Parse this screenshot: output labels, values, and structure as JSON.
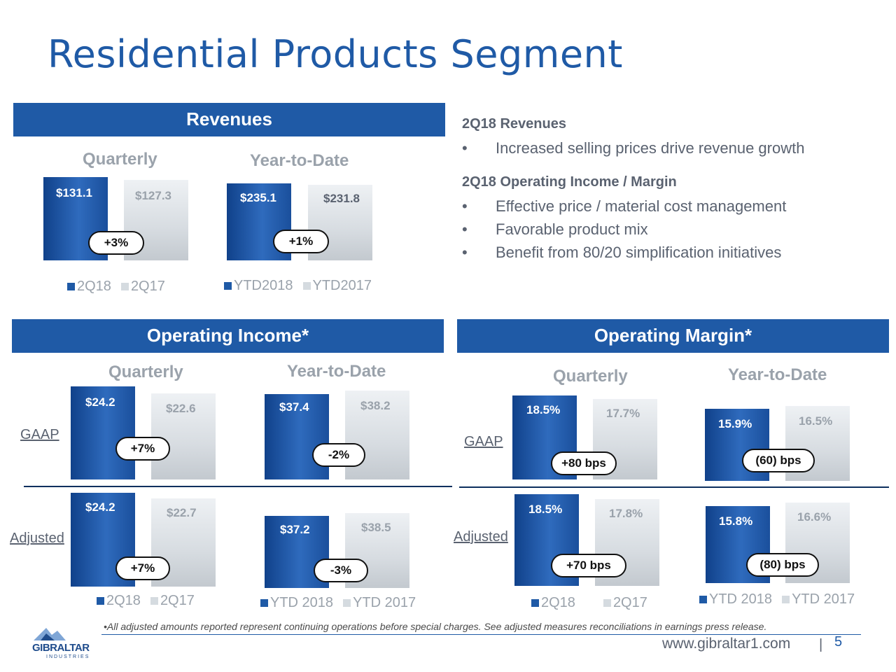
{
  "title": "Residential Products Segment",
  "revenues": {
    "banner": "Revenues",
    "quarterly_label": "Quarterly",
    "ytd_label": "Year-to-Date",
    "quarterly": {
      "current": "$131.1",
      "prior": "$127.3",
      "change": "+3%"
    },
    "ytd": {
      "current": "$235.1",
      "prior": "$231.8",
      "change": "+1%"
    },
    "legend_q": [
      "2Q18",
      "2Q17"
    ],
    "legend_ytd": [
      "YTD2018",
      "YTD2017"
    ]
  },
  "commentary": {
    "rev_head": "2Q18 Revenues",
    "rev_bullets": [
      "Increased selling prices drive revenue growth"
    ],
    "oi_head": "2Q18 Operating Income / Margin",
    "oi_bullets": [
      "Effective price / material cost management",
      "Favorable product mix",
      "Benefit from 80/20 simplification initiatives"
    ],
    "bullet_char": "•"
  },
  "operating_income": {
    "banner": "Operating Income*",
    "quarterly_label": "Quarterly",
    "ytd_label": "Year-to-Date",
    "gaap_label": "GAAP",
    "adjusted_label": "Adjusted",
    "gaap": {
      "quarterly": {
        "current": "$24.2",
        "prior": "$22.6",
        "change": "+7%"
      },
      "ytd": {
        "current": "$37.4",
        "prior": "$38.2",
        "change": "-2%"
      }
    },
    "adjusted": {
      "quarterly": {
        "current": "$24.2",
        "prior": "$22.7",
        "change": "+7%"
      },
      "ytd": {
        "current": "$37.2",
        "prior": "$38.5",
        "change": "-3%"
      }
    },
    "legend_q": [
      "2Q18",
      "2Q17"
    ],
    "legend_ytd": [
      "YTD 2018",
      "YTD 2017"
    ]
  },
  "operating_margin": {
    "banner": "Operating Margin*",
    "quarterly_label": "Quarterly",
    "ytd_label": "Year-to-Date",
    "gaap_label": "GAAP",
    "adjusted_label": "Adjusted",
    "gaap": {
      "quarterly": {
        "current": "18.5%",
        "prior": "17.7%",
        "change": "+80 bps"
      },
      "ytd": {
        "current": "15.9%",
        "prior": "16.5%",
        "change": "(60) bps"
      }
    },
    "adjusted": {
      "quarterly": {
        "current": "18.5%",
        "prior": "17.8%",
        "change": "+70 bps"
      },
      "ytd": {
        "current": "15.8%",
        "prior": "16.6%",
        "change": "(80) bps"
      }
    },
    "legend_q": [
      "2Q18",
      "2Q17"
    ],
    "legend_ytd": [
      "YTD 2018",
      "YTD 2017"
    ]
  },
  "footnote": "•All adjusted amounts reported represent continuing operations before special charges. See adjusted measures reconciliations in earnings press release.",
  "footer": {
    "url": "www.gibraltar1.com",
    "separator": "|",
    "page_number": "5",
    "logo_text": "GIBRALTAR",
    "logo_sub": "INDUSTRIES"
  },
  "colors": {
    "brand_blue": "#1f5aa6",
    "bar_dark": "#1a4f9c",
    "bar_light": "#d5dbe0",
    "muted_text": "#9aa2ab"
  }
}
